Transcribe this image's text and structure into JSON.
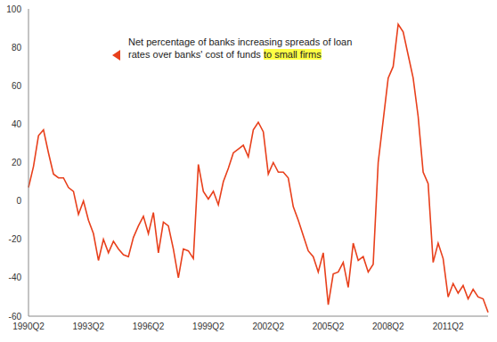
{
  "chart_data": {
    "type": "line",
    "annotation": "Net percentage of banks increasing spreads of loan rates over banks' cost of funds",
    "annotation_highlight": "to small firms",
    "categories": [
      "1990Q2",
      null,
      null,
      null,
      null,
      null,
      null,
      null,
      null,
      null,
      null,
      null,
      "1993Q2",
      null,
      null,
      null,
      null,
      null,
      null,
      null,
      null,
      null,
      null,
      null,
      "1996Q2",
      null,
      null,
      null,
      null,
      null,
      null,
      null,
      null,
      null,
      null,
      null,
      "1999Q2",
      null,
      null,
      null,
      null,
      null,
      null,
      null,
      null,
      null,
      null,
      null,
      "2002Q2",
      null,
      null,
      null,
      null,
      null,
      null,
      null,
      null,
      null,
      null,
      null,
      "2005Q2",
      null,
      null,
      null,
      null,
      null,
      null,
      null,
      null,
      null,
      null,
      null,
      "2008Q2",
      null,
      null,
      null,
      null,
      null,
      null,
      null,
      null,
      null,
      null,
      null,
      "2011Q2",
      null,
      null,
      null,
      null,
      null,
      null,
      null,
      null
    ],
    "values": [
      7,
      18,
      34,
      37,
      25,
      14,
      12,
      12,
      7,
      5,
      -7,
      0,
      -10,
      -17,
      -31,
      -20,
      -27,
      -21,
      -25,
      -28,
      -29,
      -19,
      -13,
      -8,
      -17,
      -6,
      -27,
      -11,
      -13,
      -25,
      -40,
      -25,
      -26,
      -30,
      19,
      5,
      1,
      5,
      -2,
      10,
      17,
      25,
      27,
      29,
      23,
      37,
      41,
      36,
      14,
      20,
      15,
      15,
      12,
      -3,
      -10,
      -18,
      -26,
      -29,
      -37,
      -27,
      -54,
      -38,
      -37,
      -32,
      -45,
      -22,
      -31,
      -29,
      -37,
      -33,
      20,
      42,
      64,
      70,
      92,
      88,
      76,
      64,
      44,
      15,
      9,
      -32,
      -22,
      -30,
      -50,
      -43,
      -48,
      -44,
      -51,
      -46,
      -50,
      -51,
      -58
    ],
    "color": "#e8401c",
    "ylim": [
      -60,
      100
    ],
    "yticks": [
      -60,
      -40,
      -20,
      0,
      20,
      40,
      60,
      80,
      100
    ],
    "grid": false
  }
}
